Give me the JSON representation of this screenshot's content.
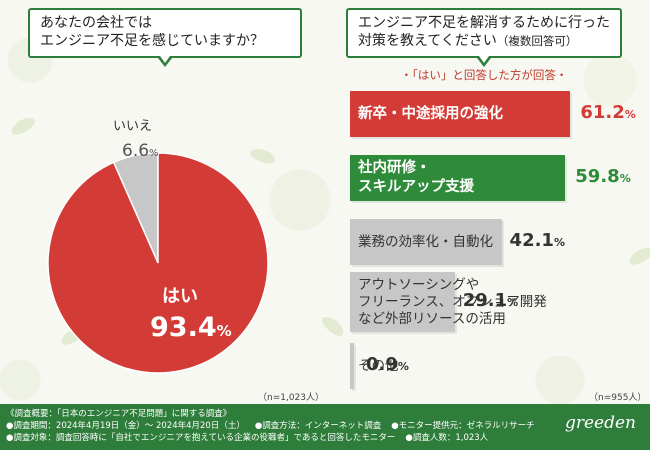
{
  "question_left": {
    "line1": "あなたの会社では",
    "line2": "エンジニア不足を感じていますか？"
  },
  "question_right": {
    "line1": "エンジニア不足を解消するために行った",
    "line2_main": "対策を教えてください",
    "line2_small": "（複数回答可）"
  },
  "sub_heading": "・「はい」と回答した方が回答・",
  "pie_note": "（n=1,023人）",
  "bar_note": "（n=955人）",
  "colors": {
    "red": "#d33b36",
    "green": "#2e8b3a",
    "gray": "#c7c7c7",
    "dark_green": "#2e7d3a"
  },
  "chart_data": [
    {
      "type": "pie",
      "title": "",
      "slices": [
        {
          "label": "はい",
          "value": 93.4,
          "display": "93.4",
          "unit": "%"
        },
        {
          "label": "いいえ",
          "value": 6.6,
          "display": "6.6",
          "unit": "%"
        }
      ]
    },
    {
      "type": "bar",
      "orientation": "horizontal",
      "categories": [
        "新卒・中途採用の強化",
        "社内研修・スキルアップ支援",
        "業務の効率化・自動化",
        "アウトソーシングやフリーランス、オフショア開発など外部リソースの活用",
        "その他"
      ],
      "label_lines": [
        [
          "新卒・中途採用の強化"
        ],
        [
          "社内研修・",
          "スキルアップ支援"
        ],
        [
          "業務の効率化・自動化"
        ],
        [
          "アウトソーシングや",
          "フリーランス、オフショア開発",
          "など外部リソースの活用"
        ],
        [
          "その他"
        ]
      ],
      "values": [
        61.2,
        59.8,
        42.1,
        29.1,
        0.9
      ],
      "displays": [
        "61.2",
        "59.8",
        "42.1",
        "29.1",
        "0.9"
      ],
      "unit": "%",
      "xlim": [
        0,
        100
      ]
    }
  ],
  "footer": {
    "line1a": "《調査概要：「日本のエンジニア不足問題」に関する調査》",
    "line2a": "●調査期間：2024年4月19日（金）～ 2024年4月20日（土）",
    "line2b": "●調査方法：インターネット調査",
    "line2c": "●モニター提供元：ゼネラルリサーチ",
    "line3a": "●調査対象：調査回答時に「自社でエンジニアを抱えている企業の役職者」であると回答したモニター",
    "line3b": "●調査人数：1,023人"
  },
  "brand": "greeden"
}
